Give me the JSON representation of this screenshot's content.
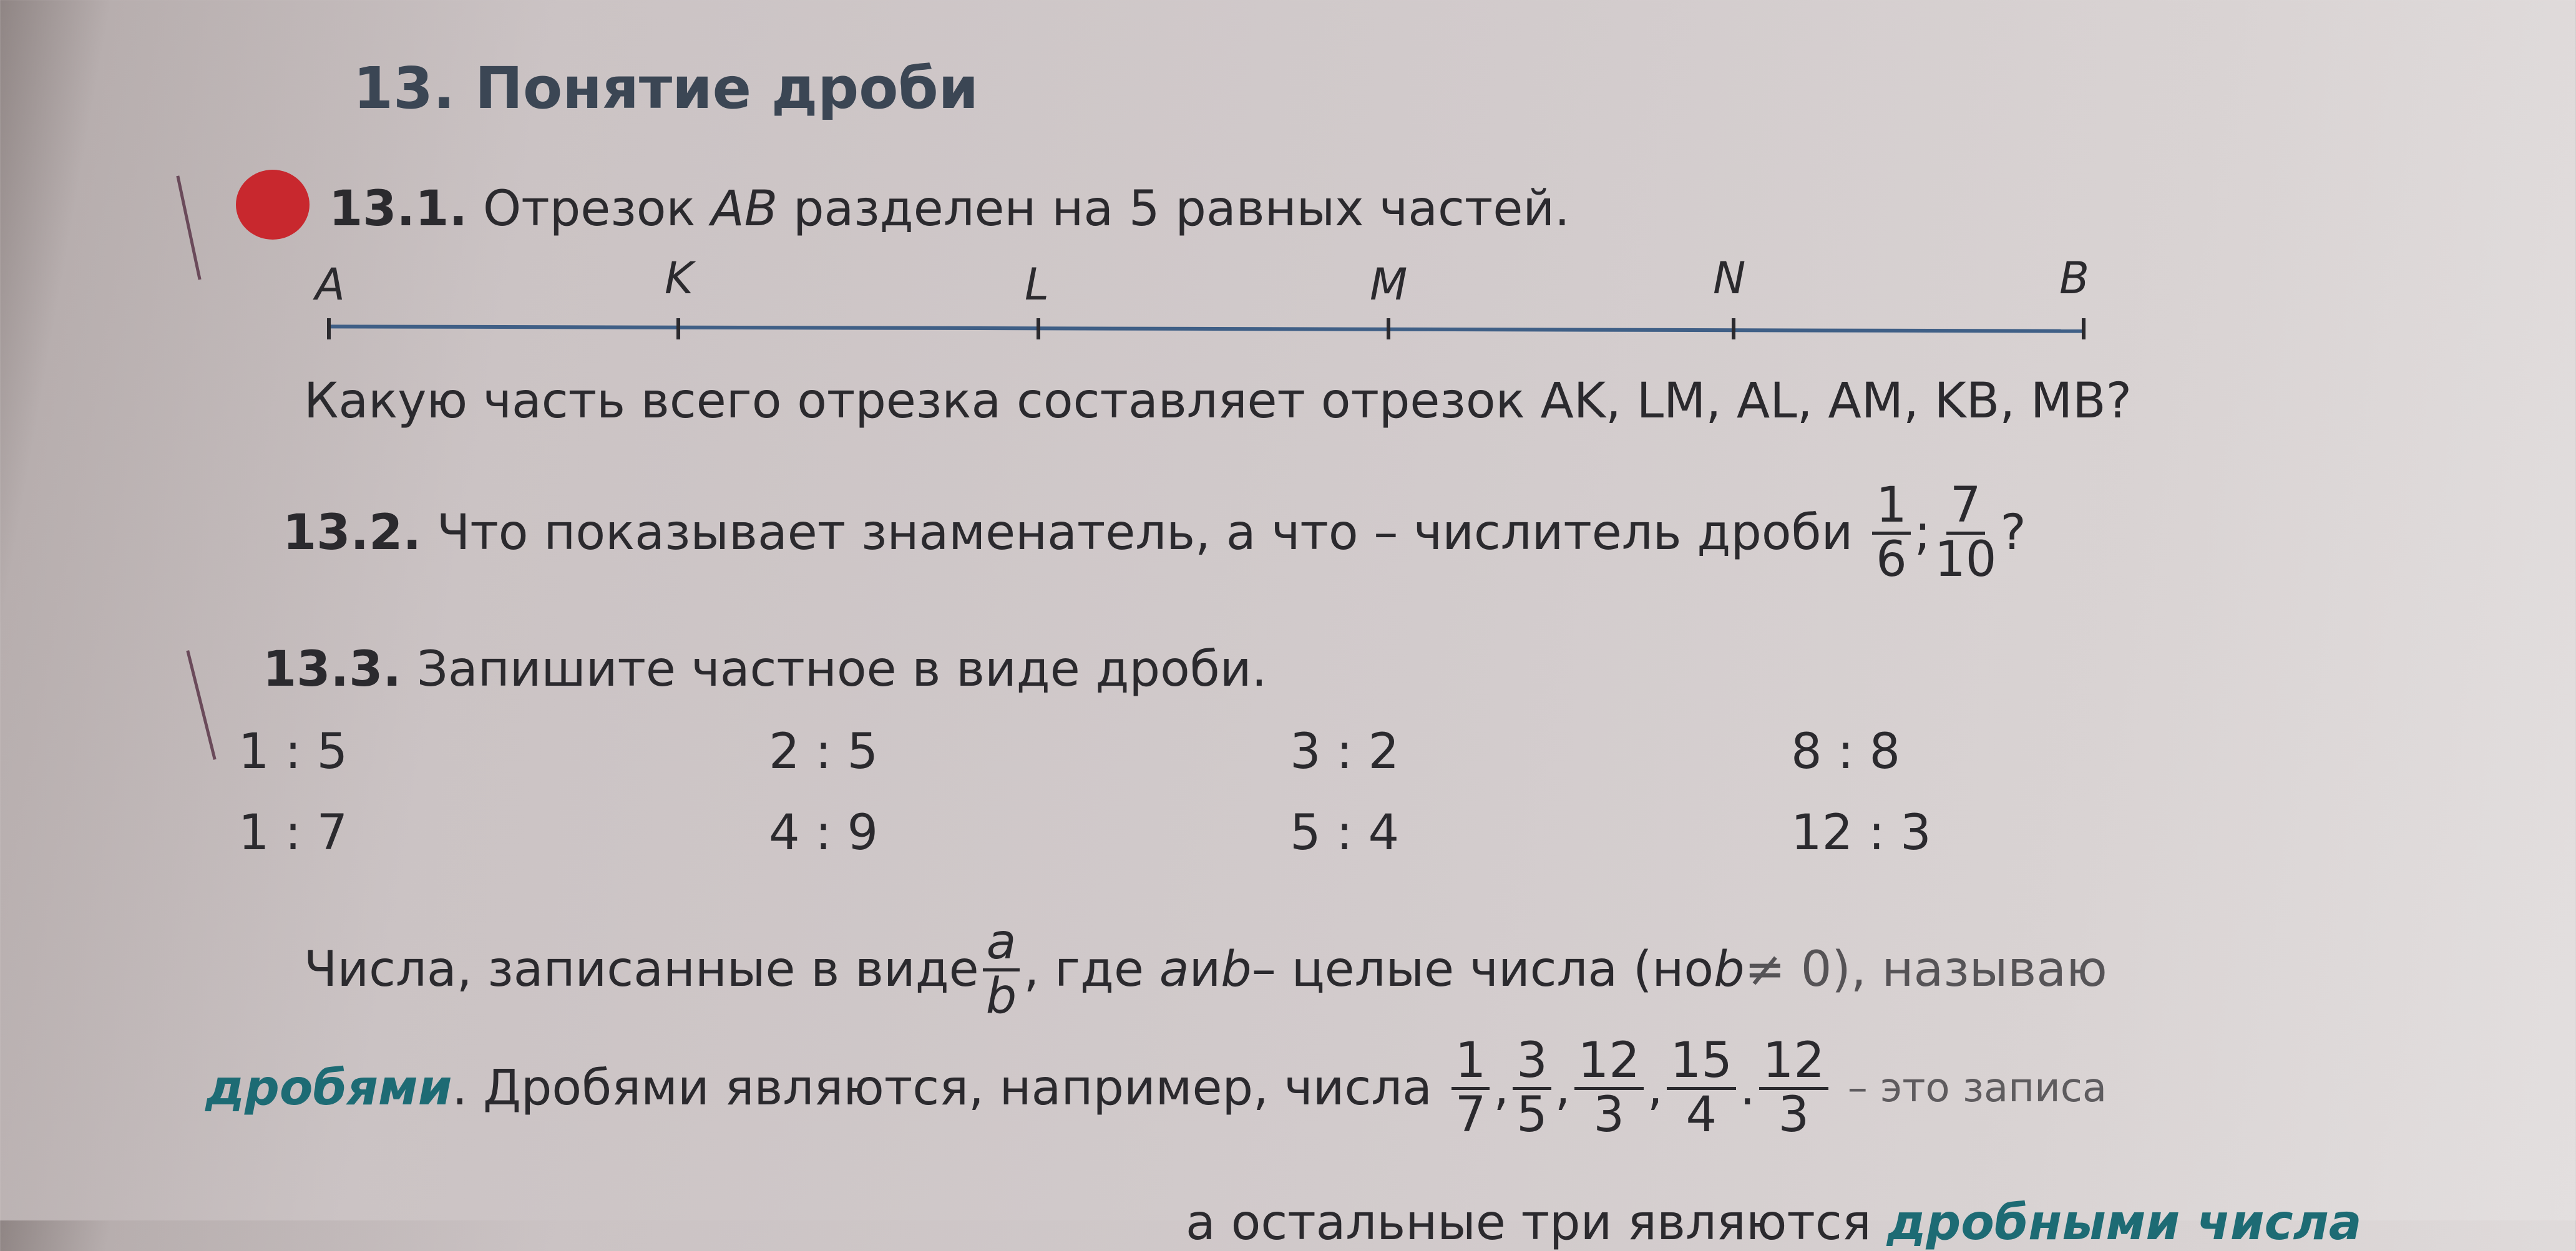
{
  "section_title": "13. Понятие дроби",
  "ex1": {
    "number": "13.1.",
    "text_before": "Отрезок ",
    "segment": "AB",
    "text_after": " разделен на 5 равных частей.",
    "points": [
      "A",
      "K",
      "L",
      "M",
      "N",
      "B"
    ],
    "question": "Какую часть всего отрезка составляет отрезок AK, LM, AL, AM, KB, MB?"
  },
  "ex2": {
    "number": "13.2.",
    "text": "Что показывает знаменатель, а что – числитель дроби",
    "f1_num": "1",
    "f1_den": "6",
    "sep": ";",
    "f2_num": "7",
    "f2_den": "10",
    "end": "?"
  },
  "ex3": {
    "number": "13.3.",
    "text": "Запишите частное в виде дроби.",
    "rows": [
      [
        "1 : 5",
        "2 : 5",
        "3 : 2",
        "8 : 8"
      ],
      [
        "1 : 7",
        "4 : 9",
        "5 : 4",
        "12 : 3"
      ]
    ]
  },
  "definition": {
    "part1": "Числа, записанные в виде",
    "a": "a",
    "b": "b",
    "part2": ", где ",
    "part3": " и ",
    "part4": " – целые числа (но ",
    "part5": " ≠ 0), называю",
    "term": "дробями",
    "part6": ". Дробями являются, например, числа",
    "examples": [
      [
        "1",
        "7"
      ],
      [
        "3",
        "5"
      ],
      [
        "12",
        "3"
      ],
      [
        "15",
        "4"
      ],
      [
        "12",
        "3"
      ]
    ],
    "part7": "– это записа",
    "bottom_text": "а остальные три являются",
    "bottom_term": "дробными числа"
  },
  "colors": {
    "title": "#3b4654",
    "teal": "#1d6b74",
    "mark": "#c8282e"
  }
}
